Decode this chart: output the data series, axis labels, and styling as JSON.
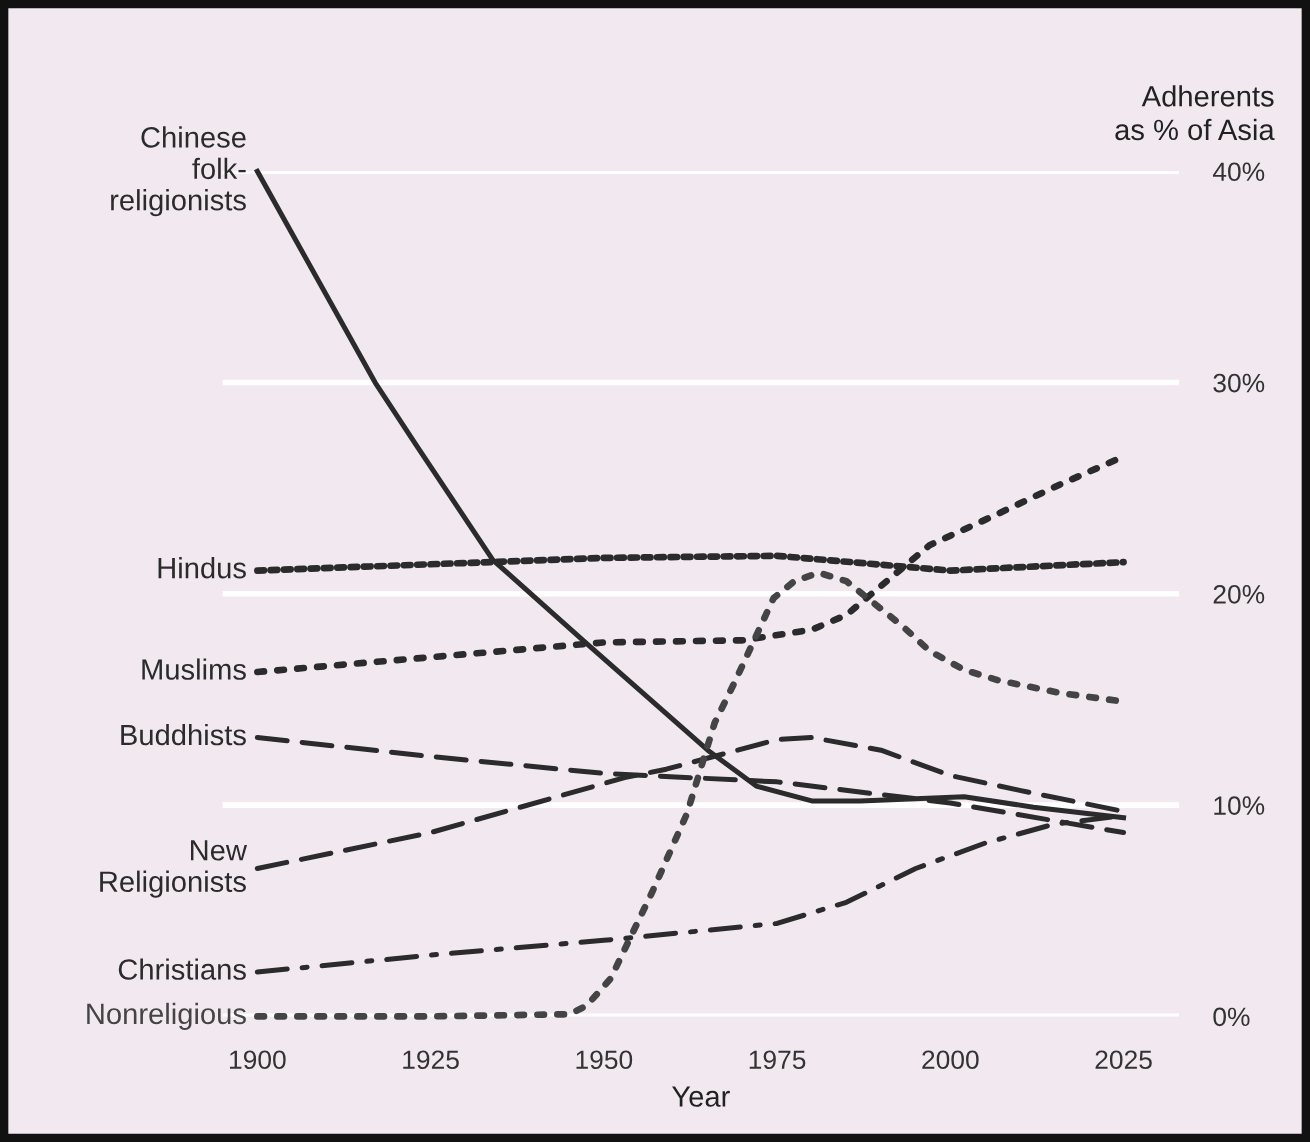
{
  "chart_data": {
    "type": "line",
    "xlabel": "Year",
    "ylabel": "Adherents\nas % of Asia",
    "xlim": [
      1895,
      2033
    ],
    "xticks": [
      1900,
      1925,
      1950,
      1975,
      2000,
      2025
    ],
    "ylim": [
      0,
      40
    ],
    "yticks": [
      {
        "value": 0,
        "label": "0%"
      },
      {
        "value": 10,
        "label": "10%"
      },
      {
        "value": 20,
        "label": "20%"
      },
      {
        "value": 30,
        "label": "30%"
      },
      {
        "value": 40,
        "label": "40%"
      }
    ],
    "grid": "y",
    "legend": false,
    "marker": "none",
    "series": [
      {
        "name": "Chinese\nfolk-\nreligionists",
        "color": "#2b2b2b",
        "line_style": "solid",
        "x": [
          1900,
          1917,
          1923,
          1934,
          1947,
          1965,
          1972,
          1980,
          1987,
          2002,
          2012,
          2025
        ],
        "values": [
          40,
          30,
          27,
          21.6,
          17.8,
          12.6,
          10.9,
          10.2,
          10.2,
          10.4,
          9.9,
          9.4
        ]
      },
      {
        "name": "Hindus",
        "color": "#2b2b2b",
        "line_style": "dotted",
        "x": [
          1900,
          1950,
          1975,
          2000,
          2025
        ],
        "values": [
          21.1,
          21.7,
          21.8,
          21.1,
          21.5
        ]
      },
      {
        "name": "Muslims",
        "color": "#2b2b2b",
        "line_style": "sparse_dotted",
        "x": [
          1900,
          1950,
          1970,
          1980,
          1985,
          1997,
          2005,
          2016,
          2025
        ],
        "values": [
          16.3,
          17.7,
          17.8,
          18.3,
          19,
          22.3,
          23.5,
          25.2,
          26.5
        ]
      },
      {
        "name": "Buddhists",
        "color": "#2b2b2b",
        "line_style": "dashed",
        "x": [
          1900,
          1925,
          1950,
          1975,
          2000,
          2025
        ],
        "values": [
          13.2,
          12.3,
          11.5,
          11.1,
          10.1,
          8.7
        ]
      },
      {
        "name": "New\nReligionists",
        "color": "#2b2b2b",
        "line_style": "dashed",
        "x": [
          1900,
          1925,
          1953,
          1959,
          1975,
          1980,
          1990,
          2000,
          2010,
          2025
        ],
        "values": [
          7.0,
          8.7,
          11.3,
          11.7,
          13.1,
          13.2,
          12.6,
          11.4,
          10.7,
          9.7
        ]
      },
      {
        "name": "Christians",
        "color": "#2b2b2b",
        "line_style": "dashdot",
        "x": [
          1900,
          1925,
          1950,
          1975,
          1985,
          1995,
          2005,
          2015,
          2025
        ],
        "values": [
          2.1,
          2.9,
          3.6,
          4.4,
          5.4,
          7.0,
          8.2,
          9.1,
          9.5
        ]
      },
      {
        "name": "Nonreligious",
        "color": "#444444",
        "line_style": "sparse_dotted",
        "x": [
          1900,
          1925,
          1945,
          1947.5,
          1951,
          1957,
          1962,
          1966,
          1969,
          1974.5,
          1977.5,
          1981,
          1985,
          1993,
          1997,
          2002,
          2007,
          2016,
          2025
        ],
        "values": [
          0,
          0,
          0.1,
          0.5,
          1.8,
          5.9,
          9.6,
          13.9,
          15.9,
          19.8,
          20.6,
          21.0,
          20.6,
          18.5,
          17.3,
          16.4,
          15.9,
          15.3,
          14.9
        ]
      }
    ]
  }
}
